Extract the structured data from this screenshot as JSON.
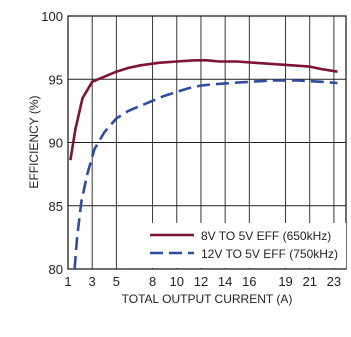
{
  "chart_data": {
    "type": "line",
    "xlabel": "TOTAL OUTPUT CURRENT (A)",
    "ylabel": "EFFICIENCY (%)",
    "xlim": [
      1,
      24
    ],
    "ylim": [
      80,
      100
    ],
    "xticks": [
      "1",
      "3",
      "5",
      "8",
      "10",
      "12",
      "14",
      "16",
      "19",
      "21",
      "23"
    ],
    "yticks": [
      "80",
      "85",
      "90",
      "95",
      "100"
    ],
    "grid": true,
    "legend_position": "bottom-right",
    "series": [
      {
        "name": "8V TO 5V EFF (650kHz)",
        "color": "#7b1531",
        "dash": "solid",
        "x": [
          1.2,
          1.6,
          2.2,
          3.0,
          4.0,
          5.0,
          6.0,
          7.0,
          8.5,
          10.0,
          11.5,
          12.5,
          13.5,
          15.0,
          16.5,
          18.0,
          19.5,
          21.0,
          22.0,
          23.3
        ],
        "y": [
          88.6,
          91.0,
          93.5,
          94.8,
          95.2,
          95.6,
          95.9,
          96.1,
          96.3,
          96.4,
          96.5,
          96.5,
          96.4,
          96.4,
          96.3,
          96.2,
          96.1,
          96.0,
          95.8,
          95.6
        ]
      },
      {
        "name": "12V TO 5V EFF (750kHz)",
        "color": "#2f4d9b",
        "dash": "dashed",
        "x": [
          1.55,
          1.75,
          2.1,
          2.6,
          3.2,
          4.0,
          5.0,
          6.0,
          7.0,
          8.0,
          9.0,
          10.0,
          11.0,
          12.0,
          13.0,
          14.5,
          16.0,
          18.0,
          20.0,
          22.0,
          23.3
        ],
        "y": [
          80.0,
          82.5,
          85.3,
          87.5,
          89.5,
          90.8,
          91.9,
          92.5,
          92.9,
          93.3,
          93.7,
          94.0,
          94.3,
          94.5,
          94.6,
          94.7,
          94.8,
          94.9,
          94.9,
          94.8,
          94.7
        ]
      }
    ]
  }
}
